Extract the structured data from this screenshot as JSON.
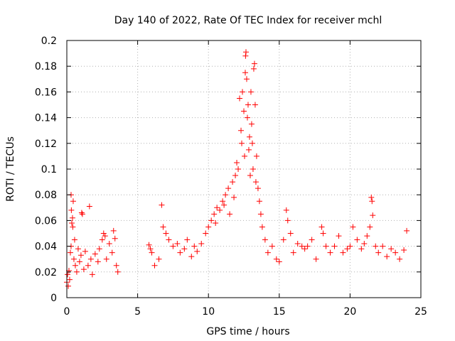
{
  "chart_data": {
    "type": "scatter",
    "title": "Day 140 of 2022, Rate Of TEC Index for receiver mchl",
    "xlabel": "GPS time / hours",
    "ylabel": "ROTI / TECUs",
    "xlim": [
      0,
      25
    ],
    "ylim": [
      0,
      0.2
    ],
    "x_ticks": [
      0,
      5,
      10,
      15,
      20,
      25
    ],
    "x_tick_labels": [
      "0",
      "5",
      "10",
      "15",
      "20",
      "25"
    ],
    "y_ticks": [
      0,
      0.02,
      0.04,
      0.06,
      0.08,
      0.1,
      0.12,
      0.14,
      0.16,
      0.18,
      0.2
    ],
    "y_tick_labels": [
      "0",
      "0.02",
      "0.04",
      "0.06",
      "0.08",
      "0.1",
      "0.12",
      "0.14",
      "0.16",
      "0.18",
      "0.2"
    ],
    "grid": true,
    "marker": "+",
    "color": "#ff0000",
    "series": [
      {
        "points": [
          [
            0.0,
            0.012
          ],
          [
            0.05,
            0.018
          ],
          [
            0.1,
            0.009
          ],
          [
            0.15,
            0.021
          ],
          [
            0.2,
            0.014
          ],
          [
            0.25,
            0.035
          ],
          [
            0.3,
            0.04
          ],
          [
            0.3,
            0.08
          ],
          [
            0.32,
            0.068
          ],
          [
            0.35,
            0.058
          ],
          [
            0.4,
            0.062
          ],
          [
            0.42,
            0.055
          ],
          [
            0.45,
            0.075
          ],
          [
            0.5,
            0.03
          ],
          [
            0.55,
            0.045
          ],
          [
            0.6,
            0.025
          ],
          [
            0.7,
            0.02
          ],
          [
            0.8,
            0.038
          ],
          [
            0.9,
            0.028
          ],
          [
            1.0,
            0.033
          ],
          [
            1.05,
            0.066
          ],
          [
            1.1,
            0.065
          ],
          [
            1.2,
            0.022
          ],
          [
            1.3,
            0.036
          ],
          [
            1.5,
            0.025
          ],
          [
            1.6,
            0.071
          ],
          [
            1.7,
            0.03
          ],
          [
            1.8,
            0.018
          ],
          [
            2.0,
            0.034
          ],
          [
            2.2,
            0.028
          ],
          [
            2.3,
            0.038
          ],
          [
            2.5,
            0.045
          ],
          [
            2.6,
            0.05
          ],
          [
            2.7,
            0.048
          ],
          [
            2.8,
            0.03
          ],
          [
            3.0,
            0.042
          ],
          [
            3.2,
            0.035
          ],
          [
            3.3,
            0.052
          ],
          [
            3.4,
            0.046
          ],
          [
            3.5,
            0.025
          ],
          [
            3.6,
            0.02
          ],
          [
            5.8,
            0.041
          ],
          [
            5.9,
            0.038
          ],
          [
            6.0,
            0.035
          ],
          [
            6.2,
            0.025
          ],
          [
            6.5,
            0.03
          ],
          [
            6.7,
            0.072
          ],
          [
            6.8,
            0.055
          ],
          [
            7.0,
            0.05
          ],
          [
            7.2,
            0.045
          ],
          [
            7.5,
            0.04
          ],
          [
            7.8,
            0.042
          ],
          [
            8.0,
            0.035
          ],
          [
            8.3,
            0.038
          ],
          [
            8.5,
            0.045
          ],
          [
            8.8,
            0.032
          ],
          [
            9.0,
            0.04
          ],
          [
            9.2,
            0.036
          ],
          [
            9.5,
            0.042
          ],
          [
            9.8,
            0.05
          ],
          [
            10.0,
            0.055
          ],
          [
            10.2,
            0.06
          ],
          [
            10.4,
            0.065
          ],
          [
            10.5,
            0.058
          ],
          [
            10.6,
            0.07
          ],
          [
            10.8,
            0.068
          ],
          [
            11.0,
            0.075
          ],
          [
            11.1,
            0.072
          ],
          [
            11.2,
            0.08
          ],
          [
            11.4,
            0.085
          ],
          [
            11.5,
            0.065
          ],
          [
            11.7,
            0.09
          ],
          [
            11.8,
            0.078
          ],
          [
            11.9,
            0.095
          ],
          [
            12.0,
            0.105
          ],
          [
            12.1,
            0.1
          ],
          [
            12.2,
            0.155
          ],
          [
            12.3,
            0.13
          ],
          [
            12.35,
            0.12
          ],
          [
            12.4,
            0.16
          ],
          [
            12.5,
            0.145
          ],
          [
            12.55,
            0.11
          ],
          [
            12.6,
            0.175
          ],
          [
            12.62,
            0.188
          ],
          [
            12.65,
            0.191
          ],
          [
            12.7,
            0.17
          ],
          [
            12.75,
            0.14
          ],
          [
            12.8,
            0.15
          ],
          [
            12.85,
            0.115
          ],
          [
            12.9,
            0.125
          ],
          [
            12.95,
            0.095
          ],
          [
            13.0,
            0.16
          ],
          [
            13.05,
            0.135
          ],
          [
            13.1,
            0.12
          ],
          [
            13.15,
            0.1
          ],
          [
            13.2,
            0.178
          ],
          [
            13.25,
            0.182
          ],
          [
            13.3,
            0.15
          ],
          [
            13.35,
            0.09
          ],
          [
            13.4,
            0.11
          ],
          [
            13.5,
            0.085
          ],
          [
            13.6,
            0.075
          ],
          [
            13.7,
            0.065
          ],
          [
            13.8,
            0.055
          ],
          [
            14.0,
            0.045
          ],
          [
            14.2,
            0.035
          ],
          [
            14.5,
            0.04
          ],
          [
            14.8,
            0.03
          ],
          [
            15.0,
            0.028
          ],
          [
            15.3,
            0.045
          ],
          [
            15.5,
            0.068
          ],
          [
            15.6,
            0.06
          ],
          [
            15.8,
            0.05
          ],
          [
            16.0,
            0.035
          ],
          [
            16.3,
            0.042
          ],
          [
            16.6,
            0.04
          ],
          [
            16.8,
            0.038
          ],
          [
            17.0,
            0.04
          ],
          [
            17.3,
            0.045
          ],
          [
            17.6,
            0.03
          ],
          [
            18.0,
            0.055
          ],
          [
            18.1,
            0.05
          ],
          [
            18.3,
            0.04
          ],
          [
            18.6,
            0.035
          ],
          [
            18.9,
            0.04
          ],
          [
            19.2,
            0.048
          ],
          [
            19.5,
            0.035
          ],
          [
            19.8,
            0.038
          ],
          [
            20.0,
            0.04
          ],
          [
            20.2,
            0.055
          ],
          [
            20.5,
            0.045
          ],
          [
            20.8,
            0.038
          ],
          [
            21.0,
            0.042
          ],
          [
            21.2,
            0.048
          ],
          [
            21.4,
            0.055
          ],
          [
            21.5,
            0.078
          ],
          [
            21.55,
            0.075
          ],
          [
            21.6,
            0.064
          ],
          [
            21.8,
            0.04
          ],
          [
            22.0,
            0.035
          ],
          [
            22.3,
            0.04
          ],
          [
            22.6,
            0.032
          ],
          [
            22.9,
            0.038
          ],
          [
            23.2,
            0.035
          ],
          [
            23.5,
            0.03
          ],
          [
            23.8,
            0.037
          ],
          [
            24.0,
            0.052
          ]
        ]
      }
    ]
  }
}
